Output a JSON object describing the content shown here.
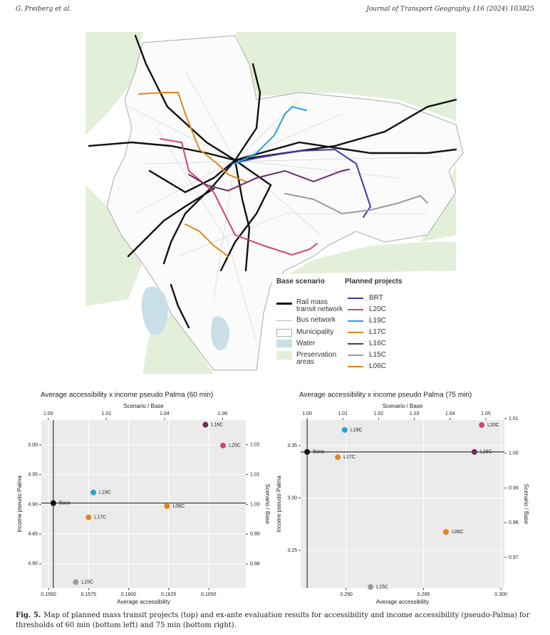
{
  "header": {
    "author": "G. Preiberg et al.",
    "journal": "Journal of Transport Geography 116 (2024) 103825"
  },
  "map": {
    "legend": {
      "base_title": "Base scenario",
      "base_items": [
        "Rail mass transit network",
        "Bus network",
        "Municipality",
        "Water",
        "Preservation areas"
      ],
      "projects_title": "Planned projects",
      "projects": [
        {
          "name": "BRT",
          "color": "#3b3ba8"
        },
        {
          "name": "L20C",
          "color": "#d6407a"
        },
        {
          "name": "L19C",
          "color": "#29a3dc"
        },
        {
          "name": "L17C",
          "color": "#d98b1e"
        },
        {
          "name": "L16C",
          "color": "#6b2a5e"
        },
        {
          "name": "L15C",
          "color": "#9a9a9a"
        },
        {
          "name": "L06C",
          "color": "#e8821c"
        }
      ]
    }
  },
  "chart_data": [
    {
      "type": "scatter",
      "title": "Average accessibility x income pseudo Palma (60 min)",
      "xlabel": "Average accessibility",
      "ylabel": "Income pseudo Palma",
      "x2label": "Scenario / Base",
      "y2label": "Scenario / Base",
      "xlim": [
        0.15455,
        0.16732
      ],
      "xticks": [
        {
          "value": 0.155,
          "label": "0.1550"
        },
        0.1575,
        {
          "value": 0.16,
          "label": "0.1600"
        },
        0.1625,
        {
          "value": 0.165,
          "label": "0.1650"
        }
      ],
      "ylim": [
        4.759,
        5.042
      ],
      "yticks": [
        {
          "value": 4.8,
          "label": "4.80"
        },
        4.85,
        {
          "value": 4.9,
          "label": "4.90"
        },
        4.95,
        {
          "value": 5,
          "label": "5.00"
        }
      ],
      "x2lim": [
        0.9976,
        1.068
      ],
      "x2ticks": [
        {
          "value": 1,
          "label": "1.00"
        },
        1.02,
        1.04,
        1.06
      ],
      "y2lim": [
        0.9719,
        1.0283
      ],
      "y2ticks": [
        0.98,
        0.99,
        {
          "value": 1,
          "label": "1.00"
        },
        1.01,
        1.02
      ],
      "grid": true,
      "series": [
        {
          "name": "Base",
          "color": "#111111",
          "x": [
            0.1553
          ],
          "values": [
            4.902
          ]
        },
        {
          "name": "L16C",
          "color": "#6b2a5e",
          "x": [
            0.1648
          ],
          "values": [
            5.034
          ]
        },
        {
          "name": "L20C",
          "color": "#d6407a",
          "x": [
            0.1659
          ],
          "values": [
            4.999
          ]
        },
        {
          "name": "L19C",
          "color": "#29a3dc",
          "x": [
            0.1578
          ],
          "values": [
            4.92
          ]
        },
        {
          "name": "L06C",
          "color": "#e8821c",
          "x": [
            0.1624
          ],
          "values": [
            4.897
          ]
        },
        {
          "name": "L17C",
          "color": "#d98b1e",
          "x": [
            0.1575
          ],
          "values": [
            4.878
          ]
        },
        {
          "name": "L15C",
          "color": "#9a9a9a",
          "x": [
            0.1567
          ],
          "values": [
            4.769
          ]
        }
      ]
    },
    {
      "type": "scatter",
      "title": "Average accessibility x income pseudo Palma (75 min)",
      "xlabel": "Average accessibility",
      "ylabel": "Income pseudo Palma",
      "x2label": "Scenario / Base",
      "y2label": "Scenario / Base",
      "xlim": [
        0.28705,
        0.30023
      ],
      "xticks": [
        {
          "value": 0.29,
          "label": "0.290"
        },
        0.295,
        {
          "value": 0.3,
          "label": "0.300"
        }
      ],
      "ylim": [
        3.214,
        3.3745
      ],
      "yticks": [
        3.25,
        {
          "value": 3.3,
          "label": "3.30"
        },
        3.35
      ],
      "x2lim": [
        0.9982,
        1.0552
      ],
      "x2ticks": [
        {
          "value": 1,
          "label": "1.00"
        },
        1.01,
        1.02,
        1.03,
        1.04,
        1.05
      ],
      "y2lim": [
        0.9612,
        1.0096
      ],
      "y2ticks": [
        0.97,
        0.98,
        0.99,
        {
          "value": 1,
          "label": "1.00"
        },
        1.01
      ],
      "grid": true,
      "series": [
        {
          "name": "Base",
          "color": "#111111",
          "x": [
            0.28747
          ],
          "values": [
            3.344
          ]
        },
        {
          "name": "L20C",
          "color": "#d6407a",
          "x": [
            0.29876
          ],
          "values": [
            3.3697
          ]
        },
        {
          "name": "L19C",
          "color": "#29a3dc",
          "x": [
            0.2899
          ],
          "values": [
            3.365
          ]
        },
        {
          "name": "L16C",
          "color": "#6b2a5e",
          "x": [
            0.29829
          ],
          "values": [
            3.344
          ]
        },
        {
          "name": "L17C",
          "color": "#d98b1e",
          "x": [
            0.28945
          ],
          "values": [
            3.339
          ]
        },
        {
          "name": "L06C",
          "color": "#e8821c",
          "x": [
            0.29645
          ],
          "values": [
            3.2675
          ]
        },
        {
          "name": "L15C",
          "color": "#9a9a9a",
          "x": [
            0.29157
          ],
          "values": [
            3.215
          ]
        }
      ]
    }
  ],
  "caption": {
    "label": "Fig. 5.",
    "text": "Map of planned mass transit projects (top) and ex-ante evaluation results for accessibility and income accessibility (pseudo-Palma) for thresholds of 60 min (bottom left) and 75 min (bottom right)."
  }
}
